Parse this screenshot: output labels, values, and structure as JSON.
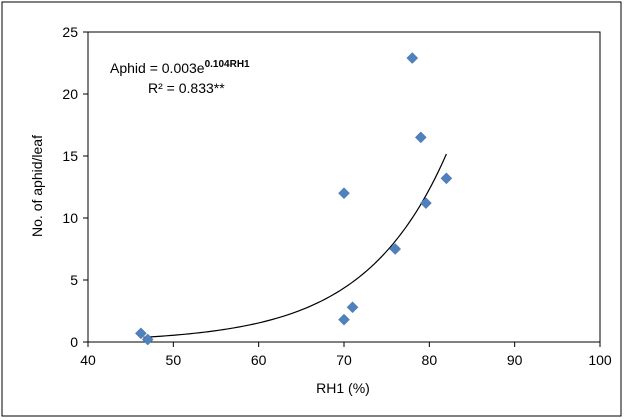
{
  "chart_data": {
    "type": "scatter",
    "xlabel": "RH1 (%)",
    "ylabel": "No. of aphid/leaf",
    "xlim": [
      40,
      100
    ],
    "ylim": [
      0,
      25
    ],
    "xticks": [
      40,
      50,
      60,
      70,
      80,
      90,
      100
    ],
    "yticks": [
      0,
      5,
      10,
      15,
      20,
      25
    ],
    "grid": false,
    "marker_color": "#4f81bd",
    "marker": "diamond",
    "points": [
      {
        "x": 46.2,
        "y": 0.7
      },
      {
        "x": 47.0,
        "y": 0.2
      },
      {
        "x": 70.0,
        "y": 1.8
      },
      {
        "x": 71.0,
        "y": 2.8
      },
      {
        "x": 70.0,
        "y": 12.0
      },
      {
        "x": 76.0,
        "y": 7.5
      },
      {
        "x": 78.0,
        "y": 22.9
      },
      {
        "x": 79.0,
        "y": 16.5
      },
      {
        "x": 79.6,
        "y": 11.2
      },
      {
        "x": 82.0,
        "y": 13.2
      }
    ],
    "trendline": {
      "type": "exponential",
      "a": 0.003,
      "b": 0.104,
      "x_range": [
        46.5,
        82
      ],
      "color": "#000000"
    },
    "equation": {
      "main": "Aphid = 0.003e",
      "exponent": "0.104RH1",
      "r2": "R² = 0.833**"
    }
  }
}
